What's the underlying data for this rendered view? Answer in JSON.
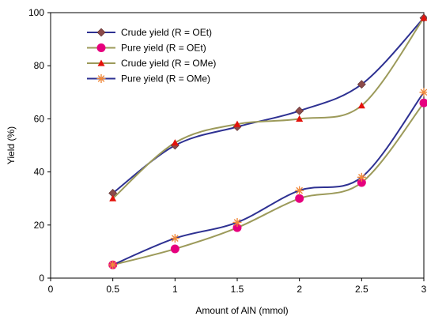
{
  "chart_data": {
    "type": "line",
    "xlabel": "Amount of AlN (mmol)",
    "ylabel": "Yield (%)",
    "xlim": [
      0,
      3
    ],
    "ylim": [
      0,
      100
    ],
    "xticks": [
      "0",
      "0.5",
      "1",
      "1.5",
      "2",
      "2.5",
      "3"
    ],
    "xtick_values": [
      0,
      0.5,
      1,
      1.5,
      2,
      2.5,
      3
    ],
    "yticks": [
      "0",
      "20",
      "40",
      "60",
      "80",
      "100"
    ],
    "ytick_values": [
      0,
      20,
      40,
      60,
      80,
      100
    ],
    "grid": false,
    "legend_position": "top-left",
    "x": [
      0.5,
      1,
      1.5,
      2,
      2.5,
      3
    ],
    "series": [
      {
        "name": "Crude yield (R = OEt)",
        "values": [
          32,
          50,
          57,
          63,
          73,
          98
        ],
        "line_color": "#2e3192",
        "marker": "diamond",
        "marker_color": "#8b4a4a"
      },
      {
        "name": "Pure yield (R = OEt)",
        "values": [
          5,
          11,
          19,
          30,
          36,
          66
        ],
        "line_color": "#9c9a5a",
        "marker": "circle",
        "marker_color": "#e6007e"
      },
      {
        "name": "Crude yield (R = OMe)",
        "values": [
          30,
          51,
          58,
          60,
          65,
          98
        ],
        "line_color": "#9c9a5a",
        "marker": "triangle",
        "marker_color": "#e3120b"
      },
      {
        "name": "Pure yield (R = OMe)",
        "values": [
          5,
          15,
          21,
          33,
          38,
          70
        ],
        "line_color": "#2e3192",
        "marker": "asterisk",
        "marker_color": "#f08a3c"
      }
    ]
  }
}
